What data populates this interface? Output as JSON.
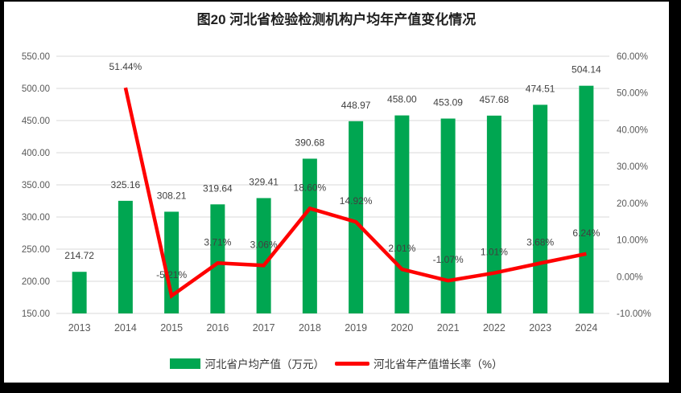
{
  "title": "图20 河北省检验检测机构户均年产值变化情况",
  "legend": {
    "position": "bottom",
    "items": [
      {
        "label": "河北省户均产值（万元）",
        "marker": "bar",
        "color": "#00A651"
      },
      {
        "label": "河北省年产值增长率（%）",
        "marker": "line",
        "color": "#FF0000"
      }
    ]
  },
  "colors": {
    "bar": "#00A651",
    "line": "#FF0000",
    "grid": "#D9D9D9",
    "axis_text": "#595959",
    "data_label_text": "#404040",
    "title_text": "#1F1F1F",
    "panel_background": "#FFFFFF",
    "border": "#000000"
  },
  "chart_data": {
    "type": "bar+line",
    "title": "图20 河北省检验检测机构户均年产值变化情况",
    "categories": [
      "2013",
      "2014",
      "2015",
      "2016",
      "2017",
      "2018",
      "2019",
      "2020",
      "2021",
      "2022",
      "2023",
      "2024"
    ],
    "series": [
      {
        "name": "河北省户均产值（万元）",
        "type": "bar",
        "axis": "left",
        "color": "#00A651",
        "values": [
          214.72,
          325.16,
          308.21,
          319.64,
          329.41,
          390.68,
          448.97,
          458.0,
          453.09,
          457.68,
          474.51,
          504.14
        ],
        "data_labels": [
          "214.72",
          "325.16",
          "308.21",
          "319.64",
          "329.41",
          "390.68",
          "448.97",
          "458.00",
          "453.09",
          "457.68",
          "474.51",
          "504.14"
        ]
      },
      {
        "name": "河北省年产值增长率（%）",
        "type": "line",
        "axis": "right",
        "color": "#FF0000",
        "values": [
          null,
          51.44,
          -5.21,
          3.71,
          3.06,
          18.6,
          14.92,
          2.01,
          -1.07,
          1.01,
          3.68,
          6.24
        ],
        "data_labels": [
          "",
          "51.44%",
          "-5.21%",
          "3.71%",
          "3.06%",
          "18.60%",
          "14.92%",
          "2.01%",
          "-1.07%",
          "1.01%",
          "3.68%",
          "6.24%"
        ]
      }
    ],
    "left_axis": {
      "min": 150,
      "max": 550,
      "step": 50,
      "tick_labels": [
        "550.00",
        "500.00",
        "450.00",
        "400.00",
        "350.00",
        "300.00",
        "250.00",
        "200.00",
        "150.00"
      ]
    },
    "right_axis": {
      "min": -10,
      "max": 60,
      "step": 10,
      "tick_labels": [
        "60.00%",
        "50.00%",
        "40.00%",
        "30.00%",
        "20.00%",
        "10.00%",
        "0.00%",
        "-10.00%"
      ]
    },
    "grid": "horizontal",
    "legend_position": "bottom"
  }
}
